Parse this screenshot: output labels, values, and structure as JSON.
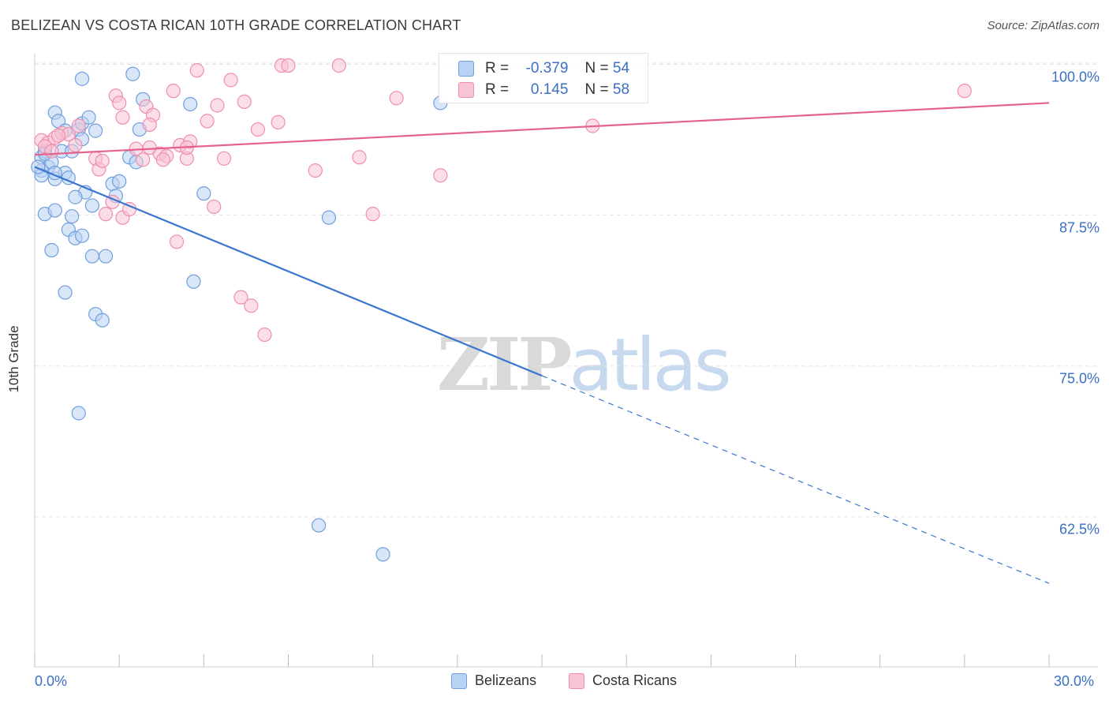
{
  "chart_data": {
    "type": "scatter",
    "title": "BELIZEAN VS COSTA RICAN 10TH GRADE CORRELATION CHART",
    "source": "Source: ZipAtlas.com",
    "xlabel": "",
    "ylabel": "10th Grade",
    "xlim": [
      0,
      30
    ],
    "ylim": [
      52,
      101
    ],
    "x_tick_labels": [
      {
        "value": 0,
        "label": "0.0%"
      },
      {
        "value": 30,
        "label": "30.0%"
      }
    ],
    "y_tick_labels": [
      {
        "value": 100,
        "label": "100.0%"
      },
      {
        "value": 87.5,
        "label": "87.5%"
      },
      {
        "value": 75,
        "label": "75.0%"
      },
      {
        "value": 62.5,
        "label": "62.5%"
      }
    ],
    "y_grid": [
      100,
      87.5,
      75,
      62.5
    ],
    "series": [
      {
        "name": "Belizeans",
        "color": "#6f9fde",
        "fill": "#b9d1f2",
        "line_color": "#3a76d0",
        "R": "-0.379",
        "N": "54",
        "trend": {
          "x0": 0,
          "y0": 91.5,
          "x1": 15,
          "y1": 74.2,
          "dash_x1": 30,
          "dash_y1": 57
        },
        "points": [
          [
            0.2,
            92.3
          ],
          [
            0.3,
            92.8
          ],
          [
            0.4,
            91.5
          ],
          [
            0.2,
            91.2
          ],
          [
            0.2,
            90.8
          ],
          [
            0.5,
            91.9
          ],
          [
            0.6,
            90.5
          ],
          [
            0.8,
            92.8
          ],
          [
            0.9,
            91.0
          ],
          [
            1.0,
            90.6
          ],
          [
            0.6,
            96.0
          ],
          [
            0.7,
            95.3
          ],
          [
            0.9,
            94.5
          ],
          [
            1.3,
            94.6
          ],
          [
            1.4,
            95.1
          ],
          [
            1.6,
            95.6
          ],
          [
            1.8,
            94.5
          ],
          [
            1.4,
            93.8
          ],
          [
            1.1,
            92.8
          ],
          [
            1.5,
            89.4
          ],
          [
            1.2,
            89.0
          ],
          [
            1.7,
            88.3
          ],
          [
            0.3,
            87.6
          ],
          [
            0.6,
            87.9
          ],
          [
            1.1,
            87.4
          ],
          [
            1.0,
            86.3
          ],
          [
            1.2,
            85.6
          ],
          [
            1.4,
            85.8
          ],
          [
            2.3,
            90.1
          ],
          [
            2.5,
            90.3
          ],
          [
            2.4,
            89.1
          ],
          [
            2.8,
            92.3
          ],
          [
            3.0,
            91.9
          ],
          [
            3.1,
            94.6
          ],
          [
            3.2,
            97.1
          ],
          [
            2.9,
            99.2
          ],
          [
            1.4,
            98.8
          ],
          [
            0.5,
            84.6
          ],
          [
            1.7,
            84.1
          ],
          [
            2.1,
            84.1
          ],
          [
            0.9,
            81.1
          ],
          [
            1.8,
            79.3
          ],
          [
            2.0,
            78.8
          ],
          [
            1.3,
            71.1
          ],
          [
            4.6,
            96.7
          ],
          [
            5.0,
            89.3
          ],
          [
            4.7,
            82.0
          ],
          [
            8.7,
            87.3
          ],
          [
            12.0,
            96.8
          ],
          [
            8.4,
            61.8
          ],
          [
            10.3,
            59.4
          ],
          [
            0.1,
            91.5
          ],
          [
            0.3,
            92.6
          ],
          [
            0.6,
            91.0
          ]
        ]
      },
      {
        "name": "Costa Ricans",
        "color": "#ee8faf",
        "fill": "#f8c3d4",
        "line_color": "#e4628d",
        "R": "0.145",
        "N": "58",
        "trend": {
          "x0": 0,
          "y0": 92.5,
          "x1": 30,
          "y1": 96.8
        },
        "points": [
          [
            0.2,
            93.7
          ],
          [
            0.4,
            93.5
          ],
          [
            0.6,
            93.9
          ],
          [
            0.8,
            94.3
          ],
          [
            1.0,
            94.2
          ],
          [
            1.2,
            93.3
          ],
          [
            1.3,
            94.9
          ],
          [
            0.3,
            93.2
          ],
          [
            0.5,
            92.8
          ],
          [
            0.7,
            94.1
          ],
          [
            1.8,
            92.2
          ],
          [
            1.9,
            91.3
          ],
          [
            2.0,
            92.0
          ],
          [
            2.3,
            88.6
          ],
          [
            2.1,
            87.6
          ],
          [
            2.6,
            87.3
          ],
          [
            2.8,
            88.0
          ],
          [
            2.4,
            97.4
          ],
          [
            2.6,
            95.6
          ],
          [
            2.5,
            96.8
          ],
          [
            3.0,
            93.0
          ],
          [
            3.2,
            92.1
          ],
          [
            3.3,
            96.5
          ],
          [
            3.5,
            95.8
          ],
          [
            3.4,
            95.0
          ],
          [
            3.7,
            92.6
          ],
          [
            3.9,
            92.4
          ],
          [
            3.8,
            92.1
          ],
          [
            4.1,
            97.8
          ],
          [
            4.3,
            93.3
          ],
          [
            4.5,
            92.2
          ],
          [
            4.6,
            93.6
          ],
          [
            4.2,
            85.3
          ],
          [
            4.8,
            99.5
          ],
          [
            5.1,
            95.3
          ],
          [
            5.4,
            96.6
          ],
          [
            5.6,
            92.2
          ],
          [
            5.3,
            88.2
          ],
          [
            5.8,
            98.7
          ],
          [
            6.2,
            96.9
          ],
          [
            6.1,
            80.7
          ],
          [
            6.4,
            80.0
          ],
          [
            6.6,
            94.6
          ],
          [
            6.8,
            77.6
          ],
          [
            7.2,
            95.2
          ],
          [
            7.3,
            99.9
          ],
          [
            7.5,
            99.9
          ],
          [
            8.3,
            91.2
          ],
          [
            9.0,
            99.9
          ],
          [
            9.6,
            92.3
          ],
          [
            10.0,
            87.6
          ],
          [
            10.7,
            97.2
          ],
          [
            12.0,
            90.8
          ],
          [
            15.0,
            99.7
          ],
          [
            16.5,
            94.9
          ],
          [
            27.5,
            97.8
          ],
          [
            3.4,
            93.1
          ],
          [
            4.5,
            93.1
          ]
        ]
      }
    ]
  },
  "legend": {
    "r_label": "R =",
    "n_label": "N =",
    "rows": [
      {
        "swatch_fill": "#b9d1f2",
        "swatch_stroke": "#6f9fde",
        "r_value": "-0.379",
        "n_value": "54"
      },
      {
        "swatch_fill": "#f8c3d4",
        "swatch_stroke": "#ee8faf",
        "r_value": "0.145",
        "n_value": "58"
      }
    ]
  },
  "bottom_legend": [
    {
      "label": "Belizeans",
      "swatch_fill": "#b9d1f2",
      "swatch_stroke": "#6f9fde"
    },
    {
      "label": "Costa Ricans",
      "swatch_fill": "#f8c3d4",
      "swatch_stroke": "#ee8faf"
    }
  ],
  "watermark": {
    "zip": "ZIP",
    "atlas": "atlas"
  }
}
